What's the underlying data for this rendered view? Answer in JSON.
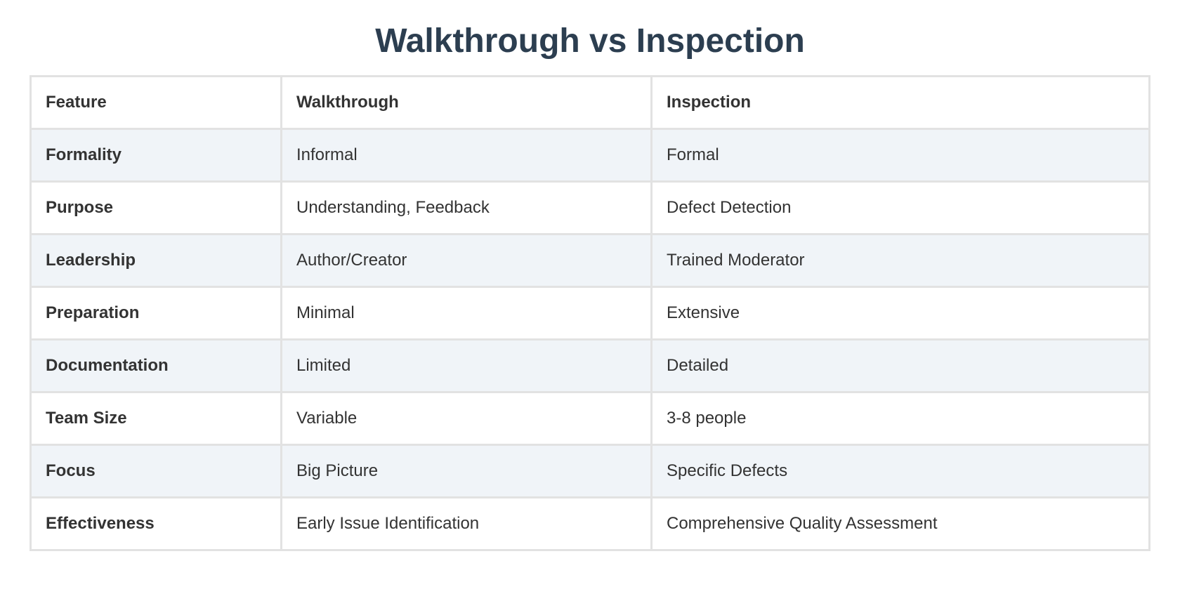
{
  "title": "Walkthrough vs Inspection",
  "table": {
    "header": [
      "Feature",
      "Walkthrough",
      "Inspection"
    ],
    "rows": [
      [
        "Formality",
        "Informal",
        "Formal"
      ],
      [
        "Purpose",
        "Understanding, Feedback",
        "Defect Detection"
      ],
      [
        "Leadership",
        "Author/Creator",
        "Trained Moderator"
      ],
      [
        "Preparation",
        "Minimal",
        "Extensive"
      ],
      [
        "Documentation",
        "Limited",
        "Detailed"
      ],
      [
        "Team Size",
        "Variable",
        "3-8 people"
      ],
      [
        "Focus",
        "Big Picture",
        "Specific Defects"
      ],
      [
        "Effectiveness",
        "Early Issue Identification",
        "Comprehensive Quality Assessment"
      ]
    ]
  }
}
